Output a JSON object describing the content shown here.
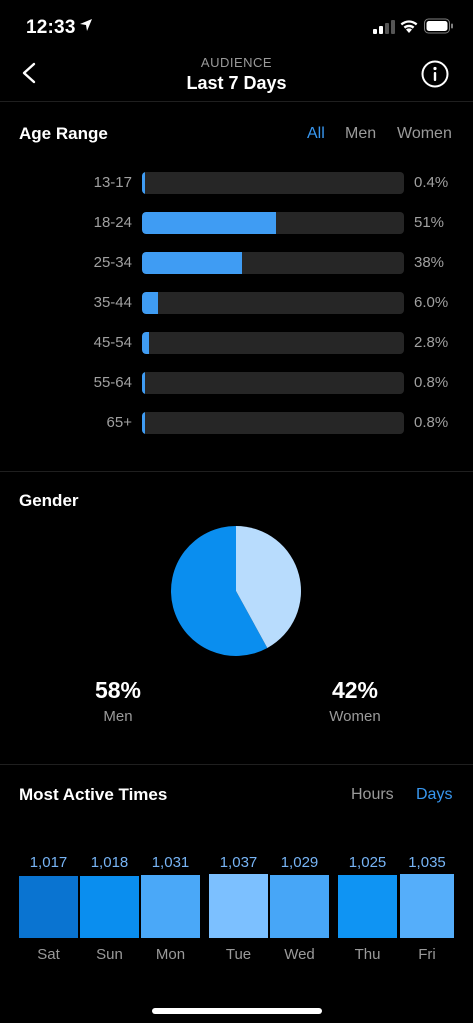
{
  "status_bar": {
    "time": "12:33"
  },
  "header": {
    "kicker": "AUDIENCE",
    "title": "Last 7 Days"
  },
  "age_range": {
    "title": "Age Range",
    "filters": [
      "All",
      "Men",
      "Women"
    ],
    "active_filter": "All",
    "bar_color": "#3f9cf3",
    "rows": [
      {
        "label": "13-17",
        "value": 0.4,
        "display": "0.4%"
      },
      {
        "label": "18-24",
        "value": 51,
        "display": "51%"
      },
      {
        "label": "25-34",
        "value": 38,
        "display": "38%"
      },
      {
        "label": "35-44",
        "value": 6.0,
        "display": "6.0%"
      },
      {
        "label": "45-54",
        "value": 2.8,
        "display": "2.8%"
      },
      {
        "label": "55-64",
        "value": 0.8,
        "display": "0.8%"
      },
      {
        "label": "65+",
        "value": 0.8,
        "display": "0.8%"
      }
    ]
  },
  "gender": {
    "title": "Gender",
    "men": {
      "pct": "58%",
      "label": "Men",
      "value": 58,
      "color": "#0a8eef"
    },
    "women": {
      "pct": "42%",
      "label": "Women",
      "value": 42,
      "color": "#b8dcfd"
    }
  },
  "active_times": {
    "title": "Most Active Times",
    "toggle": [
      "Hours",
      "Days"
    ],
    "active_toggle": "Days",
    "days": [
      {
        "label": "Sat",
        "display": "1,017",
        "value": 1017,
        "color": "#0a74d1"
      },
      {
        "label": "Sun",
        "display": "1,018",
        "value": 1018,
        "color": "#0a8eef"
      },
      {
        "label": "Mon",
        "display": "1,031",
        "value": 1031,
        "color": "#4aa8f8"
      },
      {
        "label": "Tue",
        "display": "1,037",
        "value": 1037,
        "color": "#7cc0ff"
      },
      {
        "label": "Wed",
        "display": "1,029",
        "value": 1029,
        "color": "#47a6f7"
      },
      {
        "label": "Thu",
        "display": "1,025",
        "value": 1025,
        "color": "#0f94f3"
      },
      {
        "label": "Fri",
        "display": "1,035",
        "value": 1035,
        "color": "#55aefa"
      }
    ]
  }
}
